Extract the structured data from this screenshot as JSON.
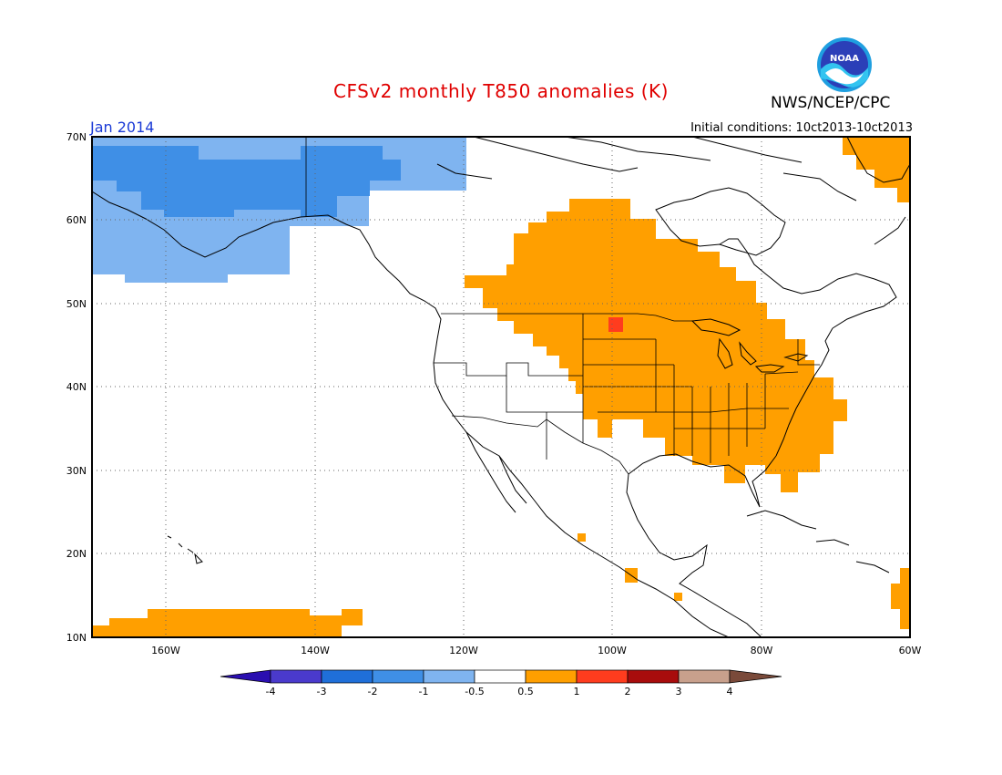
{
  "header": {
    "title": "CFSv2 monthly T850 anomalies (K)",
    "agency": "NWS/NCEP/CPC",
    "logo_text": "NOAA",
    "month": "Jan 2014",
    "initial_conditions": "Initial conditions: 10ct2013-10ct2013"
  },
  "map": {
    "lon_range": [
      -170,
      -60
    ],
    "lat_range": [
      10,
      70
    ],
    "lat_labels": [
      "10N",
      "20N",
      "30N",
      "40N",
      "50N",
      "60N",
      "70N"
    ],
    "lon_labels": [
      "160W",
      "140W",
      "120W",
      "100W",
      "80W",
      "60W"
    ],
    "colors": {
      "warm_05_1": "#ff9f00",
      "warm_1_2": "#ff3c1e",
      "cool_m1_m05": "#7fb4f0",
      "cool_m2_m1": "#3f8fe6"
    }
  },
  "colorbar": {
    "labels": [
      "-4",
      "-3",
      "-2",
      "-1",
      "-0.5",
      "0.5",
      "1",
      "2",
      "3",
      "4"
    ],
    "colors": [
      "#2a0fb0",
      "#4a3acc",
      "#1f6fd9",
      "#3f8fe6",
      "#7fb4f0",
      "#ffffff",
      "#ff9f00",
      "#ff3c1e",
      "#a80c0c",
      "#c8a08c",
      "#7a4a3a"
    ]
  }
}
